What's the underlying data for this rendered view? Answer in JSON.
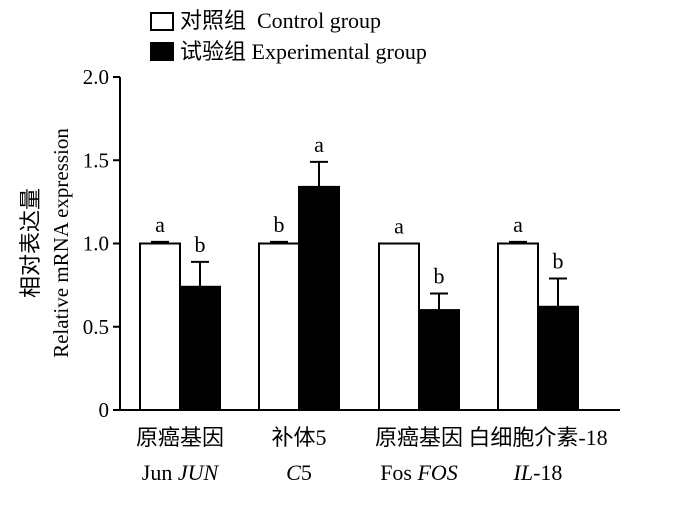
{
  "chart_data": {
    "type": "bar",
    "title": "",
    "ylabel_cn": "相对表达量",
    "ylabel_en": "Relative mRNA expression",
    "ylim": [
      0,
      2.0
    ],
    "yticks": [
      "0",
      "0.5",
      "1.0",
      "1.5",
      "2.0"
    ],
    "categories": [
      {
        "cn": "原癌基因",
        "en_plain": "Jun ",
        "en_italic": "JUN"
      },
      {
        "cn": "补体5",
        "en_plain": "",
        "en_italic": "C",
        "en_plain_after": "5"
      },
      {
        "cn": "原癌基因",
        "en_plain": "Fos ",
        "en_italic": "FOS"
      },
      {
        "cn": "白细胞介素-18",
        "en_plain": "",
        "en_italic": "IL",
        "en_plain_after": "-18"
      }
    ],
    "series": [
      {
        "name": "对照组  Control group",
        "color": "#ffffff",
        "values": [
          1.0,
          1.0,
          1.0,
          1.0
        ],
        "errors": [
          0.01,
          0.01,
          0.0,
          0.01
        ],
        "labels": [
          "a",
          "b",
          "a",
          "a"
        ]
      },
      {
        "name": "试验组 Experimental group",
        "color": "#000000",
        "values": [
          0.74,
          1.34,
          0.6,
          0.62
        ],
        "errors": [
          0.15,
          0.15,
          0.1,
          0.17
        ],
        "labels": [
          "b",
          "a",
          "b",
          "b"
        ]
      }
    ],
    "legend_position": "top-left"
  }
}
